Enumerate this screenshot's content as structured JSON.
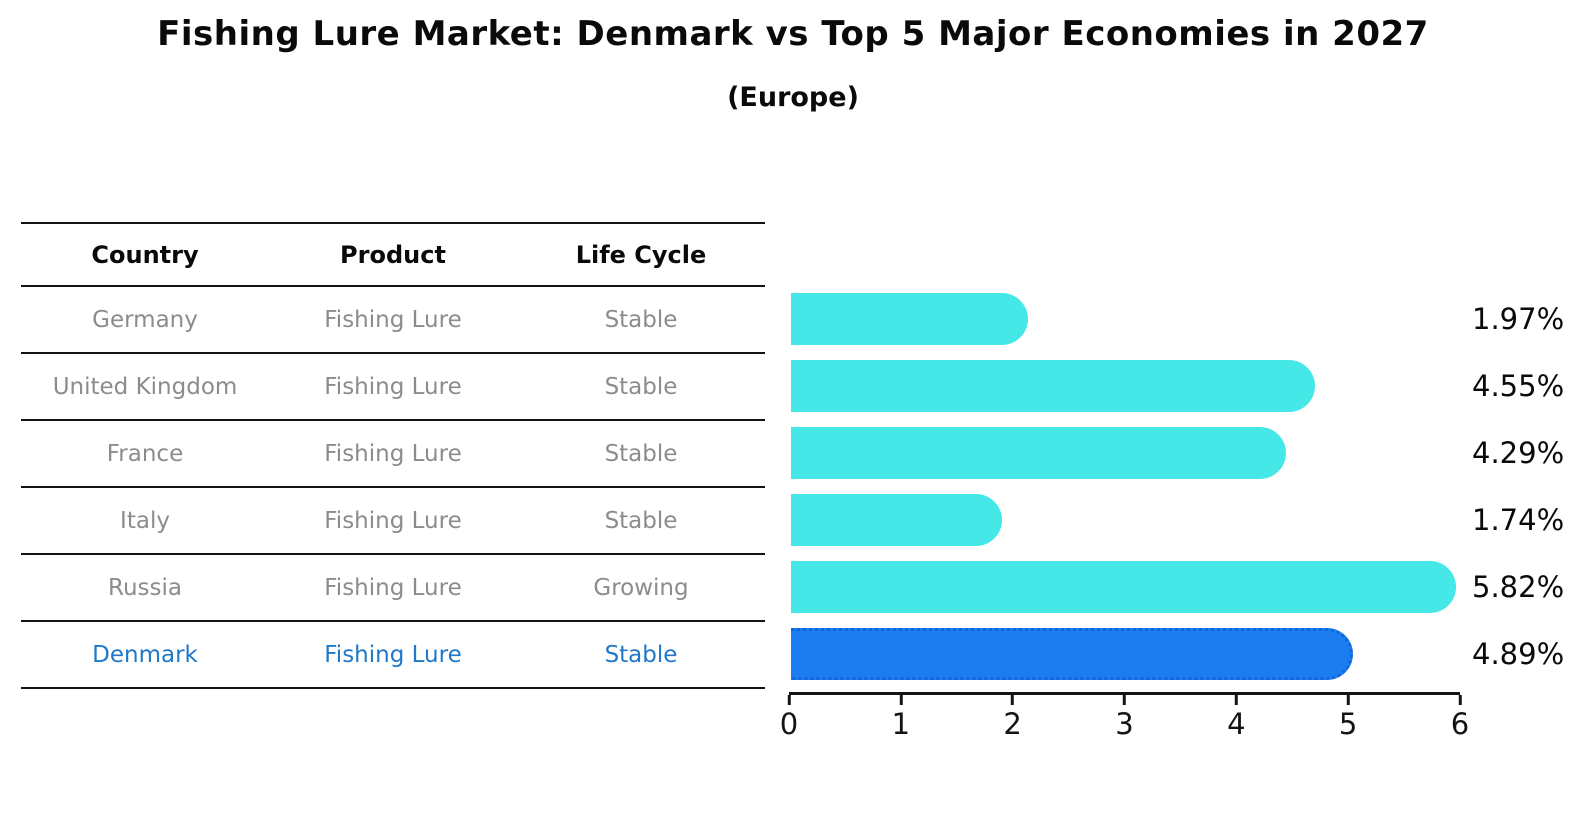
{
  "title": "Fishing Lure Market: Denmark vs Top 5 Major Economies in 2027",
  "subtitle": "(Europe)",
  "table": {
    "headers": [
      "Country",
      "Product",
      "Life Cycle"
    ],
    "rows": [
      {
        "country": "Germany",
        "product": "Fishing Lure",
        "life_cycle": "Stable",
        "highlight": false
      },
      {
        "country": "United Kingdom",
        "product": "Fishing Lure",
        "life_cycle": "Stable",
        "highlight": false
      },
      {
        "country": "France",
        "product": "Fishing Lure",
        "life_cycle": "Stable",
        "highlight": false
      },
      {
        "country": "Italy",
        "product": "Fishing Lure",
        "life_cycle": "Stable",
        "highlight": false
      },
      {
        "country": "Russia",
        "product": "Fishing Lure",
        "life_cycle": "Growing",
        "highlight": false
      },
      {
        "country": "Denmark",
        "product": "Fishing Lure",
        "life_cycle": "Stable",
        "highlight": true
      }
    ]
  },
  "chart_data": {
    "type": "bar",
    "orientation": "horizontal",
    "categories": [
      "Germany",
      "United Kingdom",
      "France",
      "Italy",
      "Russia",
      "Denmark"
    ],
    "values": [
      1.97,
      4.55,
      4.29,
      1.74,
      5.82,
      4.89
    ],
    "value_labels": [
      "1.97%",
      "4.55%",
      "4.29%",
      "1.74%",
      "5.82%",
      "4.89%"
    ],
    "xlim": [
      0,
      6
    ],
    "x_ticks": [
      "0",
      "1",
      "2",
      "3",
      "4",
      "5",
      "6"
    ],
    "grid": false,
    "legend": false,
    "highlight_index": 5,
    "bar_color": "#45e8e6",
    "highlight_bar_color": "#1c7df0",
    "highlight_bar_edge_color": "#1166d8",
    "title": "Fishing Lure Market: Denmark vs Top 5 Major Economies in 2027",
    "subtitle": "(Europe)"
  },
  "colors": {
    "background": "#ffffff",
    "table_text": "#8c8c8c",
    "header_text": "#0a0a0a",
    "highlight_text": "#1f78c8",
    "axis_color": "#141414"
  }
}
